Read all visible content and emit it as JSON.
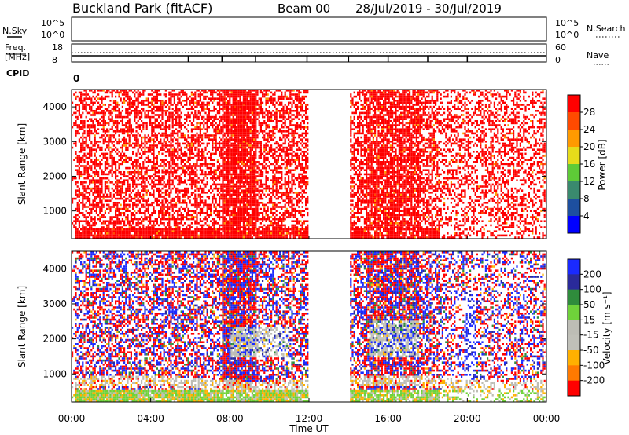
{
  "header": {
    "title": "Buckland Park (fitACF)",
    "beam": "Beam 00",
    "date_range": "28/Jul/2019 - 30/Jul/2019"
  },
  "top_panels": {
    "nsky_label": "N.Sky",
    "nsky_ticks": [
      "10^5",
      "10^0"
    ],
    "nsearch_label": "N.Search",
    "nsearch_ticks": [
      "10^5",
      "10^0"
    ],
    "freq_label": "Freq.",
    "freq_unit": "[MHz]",
    "freq_ticks": [
      "18",
      "8"
    ],
    "nave_label": "Nave",
    "nave_ticks": [
      "60",
      "0"
    ],
    "cpid_label": "CPID",
    "cpid_value": "0"
  },
  "chart_data": [
    {
      "type": "heatmap",
      "name": "power",
      "ylabel": "Slant Range [km]",
      "yticks": [
        1000,
        2000,
        3000,
        4000
      ],
      "ylim": [
        200,
        4500
      ],
      "xlim": [
        0,
        24
      ],
      "data_gaps_hours": [
        [
          11.95,
          14.0
        ]
      ],
      "colorbar": {
        "label": "Power [dB]",
        "ticks": [
          "28",
          "24",
          "20",
          "16",
          "12",
          "8",
          "4"
        ],
        "colors": [
          "#ff0000",
          "#ff4a00",
          "#ff9a00",
          "#e6dc1a",
          "#5ecb37",
          "#3a8a6e",
          "#1d4f9f",
          "#0000ff"
        ]
      }
    },
    {
      "type": "heatmap",
      "name": "velocity",
      "ylabel": "Slant Range [km]",
      "yticks": [
        1000,
        2000,
        3000,
        4000
      ],
      "ylim": [
        200,
        4500
      ],
      "xlim": [
        0,
        24
      ],
      "data_gaps_hours": [
        [
          11.95,
          14.0
        ]
      ],
      "colorbar": {
        "label": "Velocity [m s⁻¹]",
        "ticks": [
          "200",
          "100",
          "50",
          "15",
          "-15",
          "-50",
          "-100",
          "-200"
        ],
        "colors": [
          "#1a2aff",
          "#2a2a9a",
          "#2f8c3c",
          "#6fd23a",
          "#bdbdb5",
          "#c0c0b8",
          "#ffb000",
          "#ff7a00",
          "#ff0000"
        ]
      }
    }
  ],
  "time_axis": {
    "xlabel": "Time UT",
    "ticks": [
      "00:00",
      "04:00",
      "08:00",
      "12:00",
      "16:00",
      "20:00",
      "00:00"
    ]
  }
}
